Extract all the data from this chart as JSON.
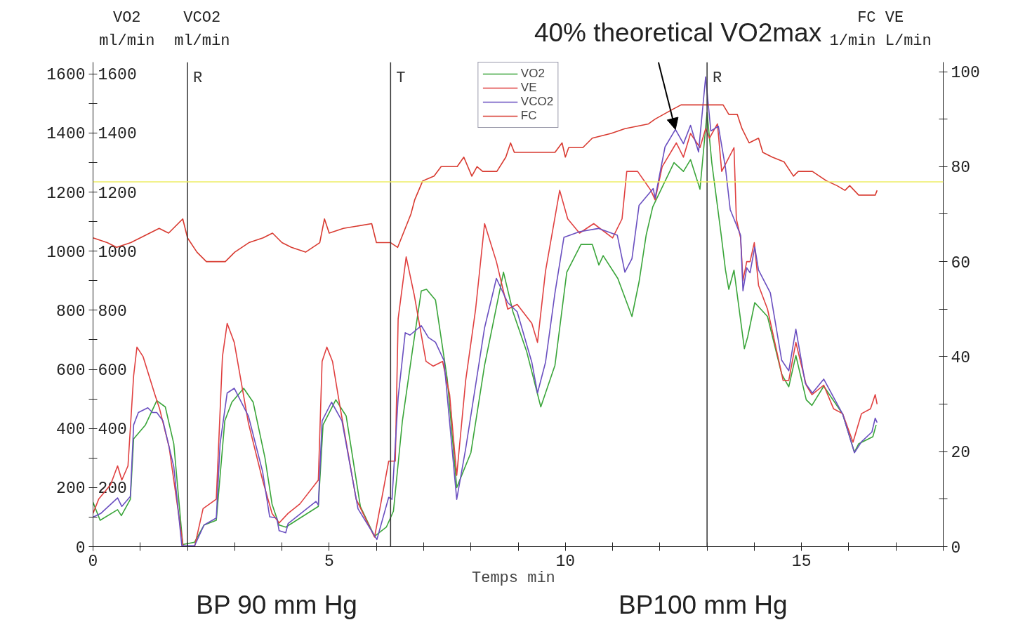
{
  "chart_data": {
    "type": "line",
    "xlabel": "Temps  min",
    "ylabel": "VO2 ml/min",
    "y3label": "VCO2 ml/min",
    "y2label": "FC VE 1/min L/min",
    "xlim": [
      0,
      18
    ],
    "xticks": [
      0,
      {
        "value": 1,
        "label": null
      },
      {
        "value": 2,
        "label": null
      },
      {
        "value": 3,
        "label": null
      },
      {
        "value": 4,
        "label": null
      },
      5,
      {
        "value": 6,
        "label": null
      },
      {
        "value": 7,
        "label": null
      },
      {
        "value": 8,
        "label": null
      },
      {
        "value": 9,
        "label": null
      },
      10,
      {
        "value": 11,
        "label": null
      },
      {
        "value": 12,
        "label": null
      },
      {
        "value": 13,
        "label": null
      },
      {
        "value": 14,
        "label": null
      },
      15,
      {
        "value": 16,
        "label": null
      },
      {
        "value": 17,
        "label": null
      },
      {
        "value": 18,
        "label": null
      }
    ],
    "ylim": [
      0,
      1640
    ],
    "yticks": [
      0,
      {
        "value": 100,
        "label": null
      },
      200,
      {
        "value": 300,
        "label": null
      },
      400,
      {
        "value": 500,
        "label": null
      },
      600,
      {
        "value": 700,
        "label": null
      },
      800,
      {
        "value": 900,
        "label": null
      },
      1000,
      {
        "value": 1100,
        "label": null
      },
      1200,
      {
        "value": 1300,
        "label": null
      },
      1400,
      {
        "value": 1500,
        "label": null
      },
      1600
    ],
    "y3lim": [
      0,
      1640
    ],
    "y3ticks": [
      200,
      400,
      600,
      800,
      1000,
      1200,
      1400,
      1600
    ],
    "y2lim": [
      0,
      102
    ],
    "y2ticks": [
      0,
      {
        "value": 10,
        "label": null
      },
      20,
      {
        "value": 30,
        "label": null
      },
      40,
      {
        "value": 50,
        "label": null
      },
      60,
      {
        "value": 70,
        "label": null
      },
      80,
      {
        "value": 90,
        "label": null
      },
      100
    ],
    "grid": false,
    "legend": "top",
    "marker": "none",
    "line_style": "solid",
    "ref_lines": [
      {
        "axis": "x",
        "value": 2,
        "label": "R",
        "color": "#333333"
      },
      {
        "axis": "x",
        "value": 6.3,
        "label": "T",
        "color": "#333333"
      },
      {
        "axis": "x",
        "value": 13,
        "label": "R",
        "color": "#333333"
      },
      {
        "axis": "y",
        "value": 1235,
        "color": "#eeee66"
      }
    ],
    "annotations": [
      {
        "text": "40% theoretical VO2max",
        "x": 12.33,
        "y": 1412
      },
      "BP 90 mm Hg",
      "BP100 mm Hg"
    ],
    "series": [
      {
        "name": "VO2",
        "color": "#3aa53a",
        "x": [
          0,
          0.15,
          0.52,
          0.6,
          0.79,
          0.86,
          1.11,
          1.35,
          1.53,
          1.71,
          1.9,
          2.15,
          2.35,
          2.61,
          2.79,
          2.94,
          3.19,
          3.39,
          3.64,
          3.79,
          3.94,
          4.08,
          4.77,
          4.87,
          5.14,
          5.36,
          5.66,
          5.96,
          6.21,
          6.36,
          6.55,
          6.76,
          6.95,
          7.06,
          7.25,
          7.5,
          7.7,
          8.0,
          8.29,
          8.69,
          8.89,
          9.18,
          9.48,
          9.78,
          10.03,
          10.33,
          10.57,
          10.71,
          10.8,
          11.11,
          11.41,
          11.56,
          11.71,
          11.85,
          12.0,
          12.3,
          12.5,
          12.65,
          12.85,
          13.0,
          13.1,
          13.3,
          13.39,
          13.46,
          13.57,
          13.79,
          13.86,
          14.01,
          14.28,
          14.58,
          14.73,
          14.88,
          15.1,
          15.22,
          15.47,
          15.87,
          16.12,
          16.21,
          16.51,
          16.58
        ],
        "values": [
          150,
          89,
          125,
          105,
          160,
          365,
          412,
          494,
          473,
          348,
          7,
          15,
          73,
          89,
          426,
          489,
          536,
          489,
          301,
          144,
          73,
          66,
          136,
          412,
          497,
          442,
          136,
          35,
          66,
          120,
          426,
          661,
          866,
          871,
          835,
          567,
          200,
          318,
          614,
          929,
          795,
          661,
          473,
          614,
          929,
          1023,
          1023,
          953,
          985,
          908,
          779,
          896,
          1054,
          1150,
          1200,
          1300,
          1270,
          1310,
          1210,
          1470,
          1300,
          1054,
          936,
          871,
          936,
          670,
          710,
          826,
          779,
          584,
          541,
          647,
          497,
          478,
          543,
          449,
          320,
          348,
          372,
          412
        ]
      },
      {
        "name": "VE",
        "color": "#e04040",
        "axis": "y2",
        "x": [
          0,
          0.12,
          0.37,
          0.52,
          0.61,
          0.74,
          0.86,
          0.93,
          1.06,
          1.31,
          1.41,
          1.61,
          1.91,
          2.15,
          2.33,
          2.61,
          2.74,
          2.84,
          2.99,
          3.29,
          3.59,
          3.79,
          3.94,
          4.13,
          4.38,
          4.77,
          4.85,
          4.95,
          5.07,
          5.22,
          5.57,
          5.96,
          6.26,
          6.4,
          6.46,
          6.63,
          6.8,
          7.05,
          7.2,
          7.4,
          7.55,
          7.7,
          7.89,
          8.1,
          8.29,
          8.54,
          8.78,
          8.98,
          9.29,
          9.41,
          9.58,
          9.88,
          10.05,
          10.3,
          10.6,
          11.0,
          11.2,
          11.3,
          11.53,
          11.81,
          11.9,
          12.05,
          12.35,
          12.5,
          12.65,
          12.85,
          12.97,
          13.05,
          13.22,
          13.31,
          13.57,
          13.62,
          13.71,
          13.76,
          13.84,
          13.91,
          14.0,
          14.09,
          14.28,
          14.61,
          14.73,
          14.88,
          15.1,
          15.22,
          15.47,
          15.68,
          15.87,
          16.09,
          16.27,
          16.46,
          16.56,
          16.6
        ],
        "values": [
          7,
          10,
          13,
          17,
          14,
          17,
          36,
          42,
          40,
          32,
          29,
          21,
          0,
          0,
          8,
          10,
          40,
          47,
          43,
          26,
          14,
          7,
          5,
          7,
          9,
          14,
          39,
          42,
          39,
          30,
          10,
          2,
          18,
          18,
          48,
          61,
          53,
          39,
          38,
          39,
          32,
          15,
          35,
          50,
          68,
          60,
          50,
          51,
          47,
          43,
          58,
          75,
          69,
          66,
          68,
          65,
          69,
          79,
          79,
          75,
          73,
          80,
          85,
          82,
          87,
          84,
          88,
          86,
          89,
          79,
          84,
          69,
          65,
          56,
          60,
          60,
          64,
          55,
          50,
          35,
          35,
          43,
          34,
          32,
          34,
          29,
          28,
          22,
          28,
          29,
          32,
          30
        ]
      },
      {
        "name": "VCO2",
        "color": "#6a4fc0",
        "axis": "y3",
        "x": [
          0,
          0.17,
          0.52,
          0.61,
          0.79,
          0.86,
          0.96,
          1.16,
          1.26,
          1.35,
          1.48,
          1.71,
          1.88,
          2.15,
          2.35,
          2.61,
          2.69,
          2.84,
          2.99,
          3.29,
          3.59,
          3.74,
          3.89,
          3.94,
          4.08,
          4.13,
          4.72,
          4.77,
          4.85,
          5.05,
          5.27,
          5.61,
          6.01,
          6.26,
          6.33,
          6.46,
          6.61,
          6.71,
          6.95,
          7.1,
          7.25,
          7.43,
          7.7,
          7.89,
          8.29,
          8.54,
          8.78,
          8.98,
          9.29,
          9.41,
          9.58,
          9.78,
          9.97,
          10.3,
          10.7,
          11.1,
          11.26,
          11.41,
          11.56,
          11.86,
          11.9,
          12.11,
          12.33,
          12.5,
          12.65,
          12.82,
          12.97,
          13.08,
          13.24,
          13.39,
          13.49,
          13.71,
          13.76,
          13.84,
          13.91,
          14.01,
          14.09,
          14.34,
          14.58,
          14.73,
          14.88,
          15.08,
          15.23,
          15.47,
          15.87,
          16.12,
          16.27,
          16.49,
          16.56,
          16.6
        ],
        "values": [
          100,
          113,
          165,
          136,
          170,
          412,
          454,
          470,
          454,
          454,
          426,
          270,
          3,
          3,
          73,
          97,
          348,
          520,
          536,
          442,
          254,
          101,
          97,
          54,
          47,
          78,
          153,
          141,
          426,
          489,
          426,
          128,
          24,
          167,
          160,
          505,
          724,
          716,
          748,
          708,
          692,
          630,
          160,
          332,
          741,
          908,
          826,
          795,
          624,
          520,
          624,
          859,
          1047,
          1066,
          1077,
          1054,
          929,
          975,
          1155,
          1212,
          1180,
          1353,
          1412,
          1364,
          1426,
          1336,
          1590,
          1407,
          1423,
          1282,
          1141,
          1054,
          866,
          944,
          927,
          1014,
          936,
          859,
          631,
          595,
          736,
          553,
          520,
          567,
          449,
          318,
          355,
          388,
          435,
          420
        ]
      },
      {
        "name": "FC",
        "color": "#d83a30",
        "axis": "y2",
        "x": [
          0,
          0.3,
          0.5,
          0.8,
          1.0,
          1.4,
          1.6,
          1.9,
          2.0,
          2.2,
          2.4,
          2.8,
          3.0,
          3.3,
          3.6,
          3.8,
          4.0,
          4.2,
          4.5,
          4.8,
          4.9,
          5.0,
          5.3,
          5.9,
          6.0,
          6.3,
          6.45,
          6.73,
          6.81,
          6.98,
          7.22,
          7.37,
          7.71,
          7.85,
          8.02,
          8.13,
          8.25,
          8.55,
          8.74,
          8.84,
          8.92,
          9.78,
          9.93,
          10.0,
          10.07,
          10.37,
          10.57,
          10.97,
          11.26,
          11.76,
          11.9,
          12.26,
          12.45,
          13.34,
          13.46,
          13.64,
          13.74,
          13.89,
          14.09,
          14.18,
          14.38,
          14.63,
          14.83,
          14.93,
          15.23,
          15.53,
          15.75,
          15.92,
          16.02,
          16.21,
          16.56,
          16.6
        ],
        "values": [
          65,
          64,
          63,
          64,
          65,
          67,
          66,
          69,
          65,
          62,
          60,
          60,
          62,
          64,
          65,
          66,
          64,
          63,
          62,
          64,
          69,
          66,
          67,
          68,
          64,
          64,
          63,
          70,
          73,
          77,
          78,
          80,
          80,
          82,
          78,
          80,
          79,
          79,
          82,
          85,
          83,
          83,
          85,
          82,
          84,
          84,
          86,
          87,
          88,
          89,
          90,
          92,
          93,
          93,
          91,
          91,
          88,
          85,
          86,
          83,
          82,
          81,
          78,
          79,
          79,
          77,
          76,
          75,
          76,
          74,
          74,
          75
        ]
      }
    ]
  }
}
